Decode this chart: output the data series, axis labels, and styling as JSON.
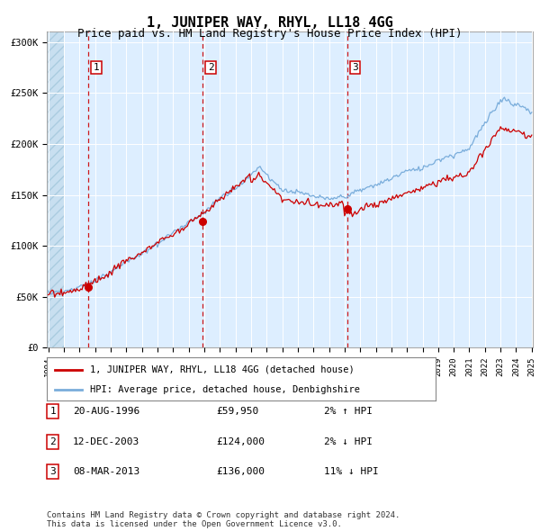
{
  "title": "1, JUNIPER WAY, RHYL, LL18 4GG",
  "subtitle": "Price paid vs. HM Land Registry's House Price Index (HPI)",
  "title_fontsize": 11,
  "subtitle_fontsize": 9,
  "background_color": "#ffffff",
  "plot_bg_color": "#ddeeff",
  "grid_color": "#ffffff",
  "sale_prices": [
    59950,
    124000,
    136000
  ],
  "legend_line1": "1, JUNIPER WAY, RHYL, LL18 4GG (detached house)",
  "legend_line2": "HPI: Average price, detached house, Denbighshire",
  "footer": "Contains HM Land Registry data © Crown copyright and database right 2024.\nThis data is licensed under the Open Government Licence v3.0.",
  "red_line_color": "#cc0000",
  "blue_line_color": "#7aaddb",
  "dot_color": "#cc0000",
  "vline_color": "#cc0000",
  "ylim": [
    0,
    310000
  ],
  "yticks": [
    0,
    50000,
    100000,
    150000,
    200000,
    250000,
    300000
  ],
  "ytick_labels": [
    "£0",
    "£50K",
    "£100K",
    "£150K",
    "£200K",
    "£250K",
    "£300K"
  ],
  "xstart_year": 1994,
  "xend_year": 2025,
  "table_entries": [
    [
      "1",
      "20-AUG-1996",
      "£59,950",
      "2% ↑ HPI"
    ],
    [
      "2",
      "12-DEC-2003",
      "£124,000",
      "2% ↓ HPI"
    ],
    [
      "3",
      "08-MAR-2013",
      "£136,000",
      "11% ↓ HPI"
    ]
  ]
}
